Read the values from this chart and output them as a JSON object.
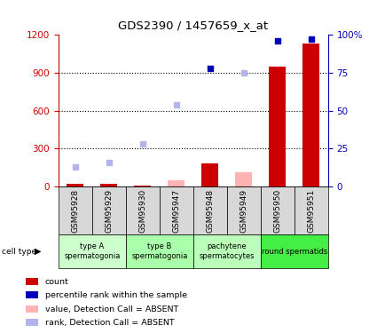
{
  "title": "GDS2390 / 1457659_x_at",
  "samples": [
    "GSM95928",
    "GSM95929",
    "GSM95930",
    "GSM95947",
    "GSM95948",
    "GSM95949",
    "GSM95950",
    "GSM95951"
  ],
  "cell_types": [
    {
      "label": "type A\nspermatogonia",
      "samples": [
        "GSM95928",
        "GSM95929"
      ],
      "color": "#ccffcc"
    },
    {
      "label": "type B\nspermatogonia",
      "samples": [
        "GSM95930",
        "GSM95947"
      ],
      "color": "#aaffaa"
    },
    {
      "label": "pachytene\nspermatocytes",
      "samples": [
        "GSM95948",
        "GSM95949"
      ],
      "color": "#bbffbb"
    },
    {
      "label": "round spermatids",
      "samples": [
        "GSM95950",
        "GSM95951"
      ],
      "color": "#44ee44"
    }
  ],
  "count_bars": {
    "GSM95928": 18,
    "GSM95929": 18,
    "GSM95930": 10,
    "GSM95948": 180,
    "GSM95950": 950,
    "GSM95951": 1130
  },
  "absent_value_bars": {
    "GSM95947": 50,
    "GSM95949": 110
  },
  "present_rank_pct": {
    "GSM95948": 78,
    "GSM95950": 96,
    "GSM95951": 97
  },
  "absent_rank_pct": {
    "GSM95928": 13,
    "GSM95929": 16,
    "GSM95930": 28,
    "GSM95947": 54,
    "GSM95949": 75
  },
  "ylim_left": [
    0,
    1200
  ],
  "ylim_right": [
    0,
    100
  ],
  "yticks_left": [
    0,
    300,
    600,
    900,
    1200
  ],
  "ytick_labels_left": [
    "0",
    "300",
    "600",
    "900",
    "1200"
  ],
  "yticks_right": [
    0,
    25,
    50,
    75,
    100
  ],
  "ytick_labels_right": [
    "0",
    "25",
    "50",
    "75",
    "100%"
  ],
  "bar_color": "#cc0000",
  "rank_dot_color": "#0000bb",
  "absent_bar_color": "#ffb3b3",
  "absent_rank_color": "#b3b3ee",
  "left_axis_color": "#cc0000",
  "right_axis_color": "#0000bb",
  "sample_box_color": "#d8d8d8",
  "legend_items": [
    {
      "color": "#cc0000",
      "label": "count"
    },
    {
      "color": "#0000bb",
      "label": "percentile rank within the sample"
    },
    {
      "color": "#ffb3b3",
      "label": "value, Detection Call = ABSENT"
    },
    {
      "color": "#b3b3ee",
      "label": "rank, Detection Call = ABSENT"
    }
  ]
}
